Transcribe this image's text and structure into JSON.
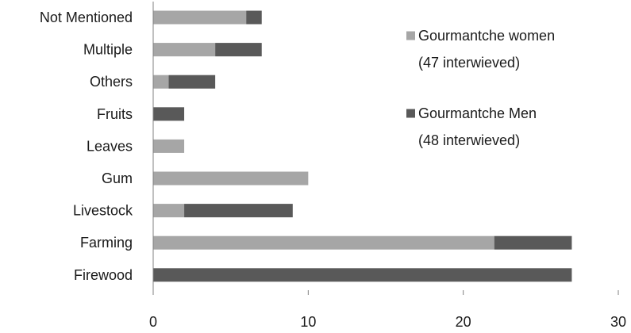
{
  "chart_data": {
    "type": "bar",
    "orientation": "horizontal",
    "stacked": true,
    "categories": [
      "Not Mentioned",
      "Multiple",
      "Others",
      "Fruits",
      "Leaves",
      "Gum",
      "Livestock",
      "Farming",
      "Firewood"
    ],
    "series": [
      {
        "name": "Gourmantche women",
        "name_line2": "(47 interwieved)",
        "color": "#a6a6a6",
        "values": [
          6,
          4,
          1,
          0,
          2,
          10,
          2,
          22,
          0
        ]
      },
      {
        "name": "Gourmantche Men",
        "name_line2": "(48 interwieved)",
        "color": "#595959",
        "values": [
          1,
          3,
          3,
          2,
          0,
          0,
          7,
          5,
          27
        ]
      }
    ],
    "xlim": [
      0,
      30
    ],
    "xticks": [
      0,
      10,
      20,
      30
    ],
    "title": "",
    "xlabel": "",
    "ylabel": "",
    "grid": false,
    "legend_position": "right"
  }
}
